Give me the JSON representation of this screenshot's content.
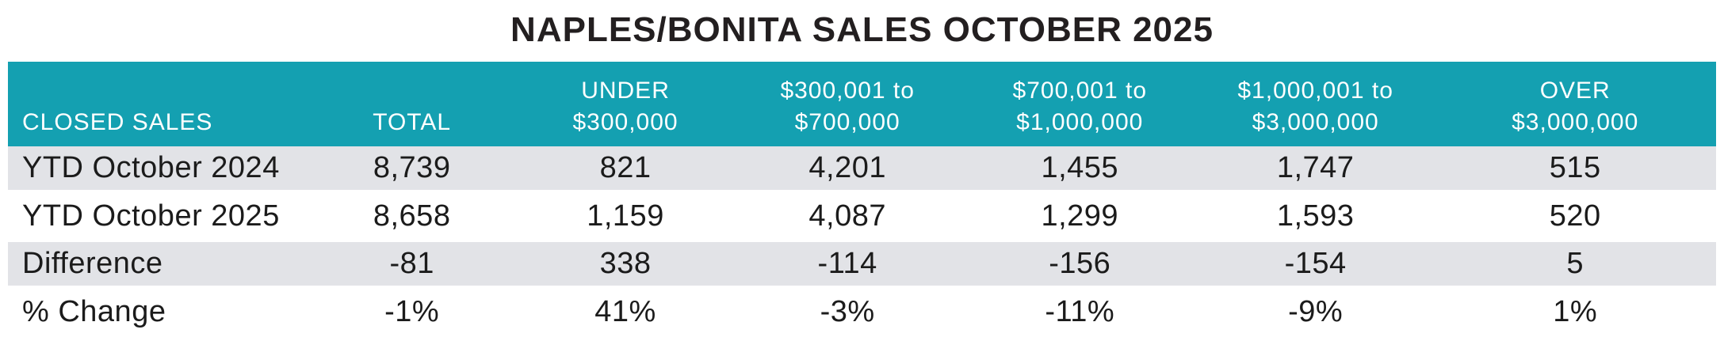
{
  "title": "NAPLES/BONITA SALES OCTOBER 2025",
  "colors": {
    "header_background": "#14a0b1",
    "header_text": "#ffffff",
    "shaded_row_background": "#e2e3e7",
    "body_text": "#1b1b1b",
    "title_text": "#231f20"
  },
  "table": {
    "columns": [
      {
        "line1": "",
        "line2": "CLOSED SALES"
      },
      {
        "line1": "",
        "line2": "TOTAL"
      },
      {
        "line1": "UNDER",
        "line2": "$300,000"
      },
      {
        "line1": "$300,001 to",
        "line2": "$700,000"
      },
      {
        "line1": "$700,001 to",
        "line2": "$1,000,000"
      },
      {
        "line1": "$1,000,001 to",
        "line2": "$3,000,000"
      },
      {
        "line1": "OVER",
        "line2": "$3,000,000"
      }
    ],
    "rows": [
      {
        "label": "YTD October 2024",
        "values": [
          "8,739",
          "821",
          "4,201",
          "1,455",
          "1,747",
          "515"
        ]
      },
      {
        "label": "YTD October 2025",
        "values": [
          "8,658",
          "1,159",
          "4,087",
          "1,299",
          "1,593",
          "520"
        ]
      },
      {
        "label": "Difference",
        "values": [
          "-81",
          "338",
          "-114",
          "-156",
          "-154",
          "5"
        ]
      },
      {
        "label": "% Change",
        "values": [
          "-1%",
          "41%",
          "-3%",
          "-11%",
          "-9%",
          "1%"
        ]
      }
    ]
  },
  "chart_data": {
    "type": "table",
    "title": "NAPLES/BONITA SALES OCTOBER 2025",
    "columns": [
      "CLOSED SALES",
      "TOTAL",
      "UNDER $300,000",
      "$300,001 to $700,000",
      "$700,001 to $1,000,000",
      "$1,000,001 to $3,000,000",
      "OVER $3,000,000"
    ],
    "rows": [
      {
        "label": "YTD October 2024",
        "values": [
          8739,
          821,
          4201,
          1455,
          1747,
          515
        ]
      },
      {
        "label": "YTD October 2025",
        "values": [
          8658,
          1159,
          4087,
          1299,
          1593,
          520
        ]
      },
      {
        "label": "Difference",
        "values": [
          -81,
          338,
          -114,
          -156,
          -154,
          5
        ]
      },
      {
        "label": "% Change",
        "values": [
          "-1%",
          "41%",
          "-3%",
          "-11%",
          "-9%",
          "1%"
        ]
      }
    ],
    "layout": {
      "shaded_rows": [
        0,
        2
      ],
      "value_alignment": "center",
      "label_alignment": "left"
    }
  }
}
